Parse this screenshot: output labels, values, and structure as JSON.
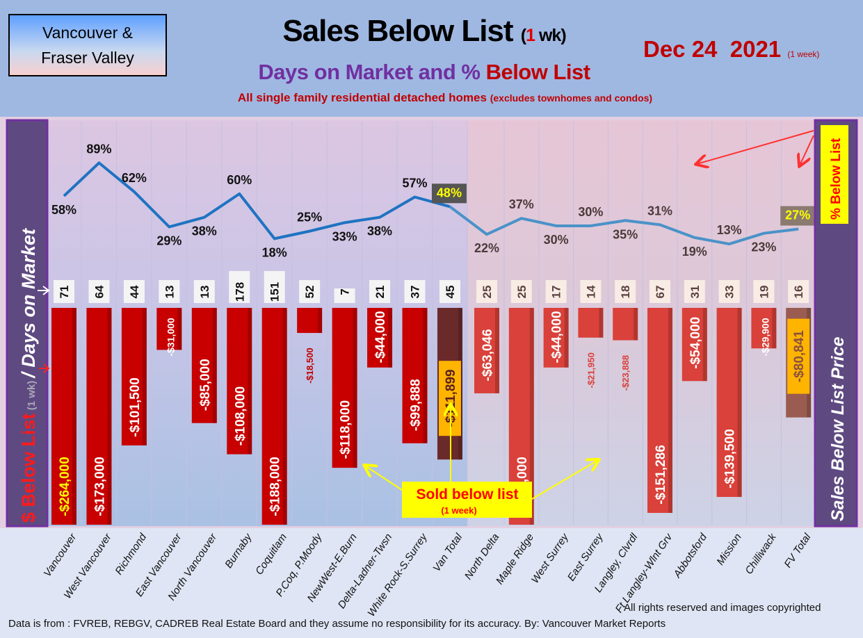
{
  "header": {
    "region_line1": "Vancouver &",
    "region_line2": "Fraser Valley",
    "title": "Sales Below List",
    "title_paren_open": "(",
    "title_one": "1",
    "title_wk": " wk)",
    "subtitle_purple": "Days on Market and % ",
    "subtitle_red": "Below List",
    "note": "All single family residential detached homes",
    "note_small": "(excludes townhomes and condos)",
    "date": "Dec 24  2021",
    "date_small": "(1 week)"
  },
  "side_labels": {
    "left_red": "$ Below List",
    "left_gray": " (1 wk) ",
    "left_white": "/ Days on Market",
    "right_yellow": "% Below List",
    "right_white": "Sales Below List Price"
  },
  "annotation": {
    "title": "Sold below list",
    "sub": "(1 week)"
  },
  "colors": {
    "van_bar": "#c80000",
    "van_total_bar": "#6b2a2a",
    "fv_bar": "#d9413a",
    "fv_total_bar": "#9a5c50",
    "van_line": "#1f73c2",
    "fv_line": "#4a92c9",
    "total_label_bg": "#ffb400"
  },
  "chart_data": {
    "type": "bar+line",
    "categories": [
      "Vancouver",
      "West Vancouver",
      "Richmond",
      "East Vancouver",
      "North Vancouver",
      "Burnaby",
      "Coquitlam",
      "P.Coq, P.Moody",
      "NewWest-E.Burn",
      "Delta-Ladner-Twsn",
      "White Rock-S.Surrey",
      "Van Total",
      "North Delta",
      "Maple Ridge",
      "West Surrey",
      "East Surrey",
      "Langley, Clvrdl",
      "Ft Langley-Wlnt Grv",
      "Abbotsford",
      "Mission",
      "Chilliwack",
      "FV Total"
    ],
    "series": [
      {
        "name": "% Below List",
        "type": "line",
        "unit": "%",
        "values": [
          58,
          89,
          62,
          29,
          38,
          60,
          18,
          25,
          33,
          38,
          57,
          48,
          22,
          37,
          30,
          30,
          35,
          31,
          19,
          13,
          23,
          27
        ],
        "labels": [
          "58%",
          "89%",
          "62%",
          "29%",
          "38%",
          "60%",
          "18%",
          "25%",
          "33%",
          "38%",
          "57%",
          "48%",
          "22%",
          "37%",
          "30%",
          "30%",
          "35%",
          "31%",
          "19%",
          "13%",
          "23%",
          "27%"
        ]
      },
      {
        "name": "Days on Market",
        "type": "label",
        "values": [
          71,
          64,
          44,
          13,
          13,
          178,
          151,
          52,
          7,
          21,
          37,
          45,
          25,
          25,
          17,
          14,
          18,
          67,
          31,
          33,
          19,
          16
        ]
      },
      {
        "name": "$ Below List",
        "type": "bar",
        "values": [
          -264000,
          -173000,
          -101500,
          -31000,
          -85000,
          -108000,
          -188000,
          -18500,
          -118000,
          -44000,
          -99888,
          -111899,
          -63046,
          -200000,
          -44000,
          -21950,
          -23888,
          -151286,
          -54000,
          -139500,
          -29900,
          -80841
        ],
        "labels": [
          "-$264,000",
          "-$173,000",
          "-$101,500",
          "-$31,000",
          "-$85,000",
          "-$108,000",
          "-$188,000",
          "-$18,500",
          "-$118,000",
          "-$44,000",
          "-$99,888",
          "-$111,899",
          "-$63,046",
          "-$200,000",
          "-$44,000",
          "-$21,950",
          "-$23,888",
          "-$151,286",
          "-$54,000",
          "-$139,500",
          "-$29,900",
          "-$80,841"
        ]
      }
    ],
    "groups": [
      "Vancouver",
      "Vancouver",
      "Vancouver",
      "Vancouver",
      "Vancouver",
      "Vancouver",
      "Vancouver",
      "Vancouver",
      "Vancouver",
      "Vancouver",
      "Vancouver",
      "Vancouver Total",
      "Fraser Valley",
      "Fraser Valley",
      "Fraser Valley",
      "Fraser Valley",
      "Fraser Valley",
      "Fraser Valley",
      "Fraser Valley",
      "Fraser Valley",
      "Fraser Valley",
      "Fraser Valley Total"
    ],
    "ylim_bars": [
      -160000,
      0
    ],
    "ylim_line": [
      0,
      100
    ]
  },
  "footer": {
    "rights": "All rights reserved and  images copyrighted",
    "source": "Data is from : FVREB, REBGV, CADREB Real Estate Board and they assume no responsibility for its accuracy. By: Vancouver Market Reports"
  }
}
